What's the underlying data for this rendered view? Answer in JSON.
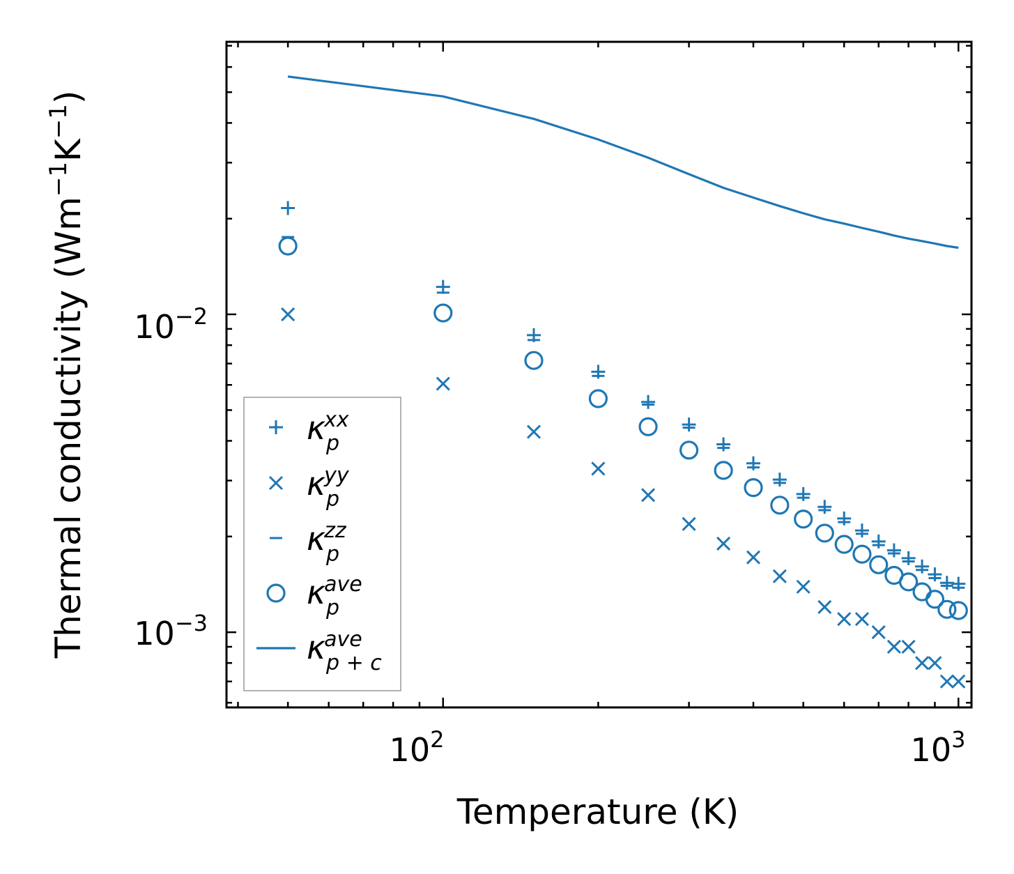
{
  "chart_data": {
    "type": "scatter",
    "title": "",
    "xlabel": "Temperature (K)",
    "ylabel_main": "Thermal conductivity (Wm",
    "ylabel_sup1": "−1",
    "ylabel_mid": "K",
    "ylabel_sup2": "−1",
    "ylabel_end": ")",
    "xscale": "log",
    "yscale": "log",
    "xlim": [
      38,
      1060
    ],
    "ylim": [
      0.00058,
      0.072
    ],
    "grid": false,
    "legend_position": "lower-left",
    "color": "#1f77b4",
    "x_ticks": [
      {
        "base": "10",
        "exp": "2",
        "value": 100
      },
      {
        "base": "10",
        "exp": "3",
        "value": 1000
      }
    ],
    "y_ticks": [
      {
        "base": "10",
        "exp": "−2",
        "value": 0.01
      },
      {
        "base": "10",
        "exp": "−3",
        "value": 0.001
      }
    ],
    "x": [
      50,
      100,
      150,
      200,
      250,
      300,
      350,
      400,
      450,
      500,
      550,
      600,
      650,
      700,
      750,
      800,
      850,
      900,
      950,
      1000
    ],
    "series": [
      {
        "name": "κp^xx",
        "label_main": "κ",
        "label_sub": "p",
        "label_sup": "xx",
        "marker": "plus",
        "values": [
          0.0216,
          0.0122,
          0.0086,
          0.0066,
          0.0053,
          0.0045,
          0.0039,
          0.0034,
          0.00302,
          0.00272,
          0.00248,
          0.00228,
          0.00209,
          0.00193,
          0.00181,
          0.00171,
          0.00161,
          0.00152,
          0.00143,
          0.00142
        ]
      },
      {
        "name": "κp^yy",
        "label_main": "κ",
        "label_sub": "p",
        "label_sup": "yy",
        "marker": "x",
        "values": [
          0.01,
          0.00605,
          0.00427,
          0.00327,
          0.0027,
          0.00219,
          0.0019,
          0.00172,
          0.0015,
          0.00139,
          0.0012,
          0.0011,
          0.0011,
          0.001,
          0.0009,
          0.0009,
          0.0008,
          0.0008,
          0.0007,
          0.0007
        ]
      },
      {
        "name": "κp^zz",
        "label_main": "κ",
        "label_sub": "p",
        "label_sup": "zz",
        "marker": "hline",
        "values": [
          0.0175,
          0.0117,
          0.0083,
          0.0064,
          0.0052,
          0.0044,
          0.0038,
          0.0033,
          0.00295,
          0.00265,
          0.00242,
          0.00222,
          0.00204,
          0.00188,
          0.00177,
          0.00167,
          0.00157,
          0.00148,
          0.0014,
          0.00138
        ]
      },
      {
        "name": "κp^ave",
        "label_main": "κ",
        "label_sub": "p",
        "label_sup": "ave",
        "marker": "circle",
        "values": [
          0.0164,
          0.0101,
          0.00716,
          0.00543,
          0.00443,
          0.00374,
          0.00323,
          0.00285,
          0.00251,
          0.00227,
          0.00205,
          0.00189,
          0.00176,
          0.00163,
          0.00151,
          0.00144,
          0.00134,
          0.00127,
          0.00118,
          0.00117
        ]
      },
      {
        "name": "κp+c^ave",
        "label_main": "κ",
        "label_sub": "p + c",
        "label_sup": "ave",
        "marker": "line",
        "values": [
          0.056,
          0.0485,
          0.0412,
          0.0355,
          0.0311,
          0.0276,
          0.025,
          0.0233,
          0.0219,
          0.0208,
          0.0199,
          0.0193,
          0.0187,
          0.0182,
          0.0177,
          0.0173,
          0.017,
          0.0167,
          0.0164,
          0.0162
        ]
      }
    ]
  }
}
